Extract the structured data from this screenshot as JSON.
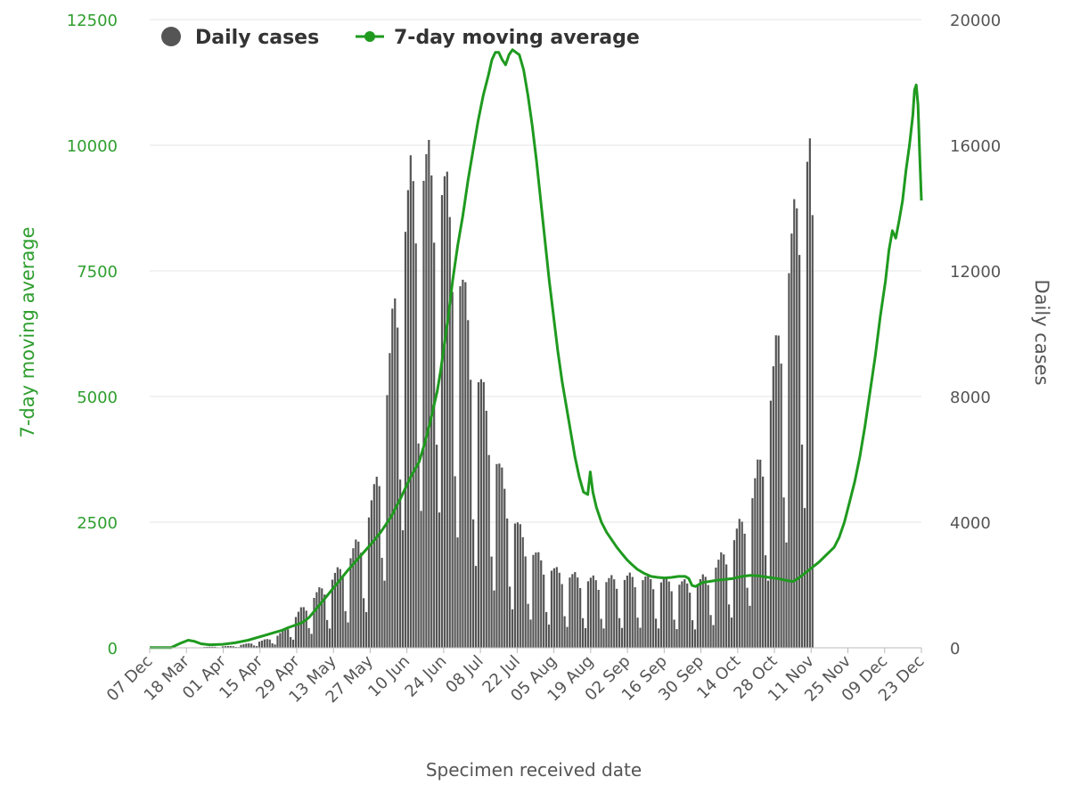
{
  "chart_data": {
    "type": "bar+line",
    "xlabel": "Specimen received date",
    "ylabel_left": "7-day moving average",
    "ylabel_right": "Daily cases",
    "ylim_left": [
      0,
      12500
    ],
    "ylim_right": [
      0,
      20000
    ],
    "yticks_left": [
      "0",
      "2500",
      "5000",
      "7500",
      "10000",
      "12500"
    ],
    "yticks_right": [
      "0",
      "4000",
      "8000",
      "12000",
      "16000",
      "20000"
    ],
    "xticks": [
      "07 Dec",
      "18 Mar",
      "01 Apr",
      "15 Apr",
      "29 Apr",
      "13 May",
      "27 May",
      "10 Jun",
      "24 Jun",
      "08 Jul",
      "22 Jul",
      "05 Aug",
      "19 Aug",
      "02 Sep",
      "16 Sep",
      "30 Sep",
      "14 Oct",
      "28 Oct",
      "11 Nov",
      "25 Nov",
      "09 Dec",
      "23 Dec"
    ],
    "grid": true,
    "legend_position": "top-left",
    "colors": {
      "bars": "#555555",
      "line": "#1f9a1f",
      "left_axis": "#2e9e2e",
      "grid": "#e6e6e6"
    },
    "series": [
      {
        "name": "Daily cases",
        "axis": "right",
        "kind": "bar",
        "anchor_points": [
          [
            0,
            0
          ],
          [
            40,
            0
          ],
          [
            60,
            20
          ],
          [
            100,
            60
          ],
          [
            130,
            200
          ],
          [
            150,
            380
          ],
          [
            160,
            600
          ],
          [
            175,
            1100
          ],
          [
            190,
            1500
          ],
          [
            205,
            1900
          ],
          [
            220,
            2300
          ],
          [
            235,
            2800
          ],
          [
            250,
            3500
          ],
          [
            262,
            4600
          ],
          [
            270,
            6000
          ],
          [
            280,
            8500
          ],
          [
            288,
            11000
          ],
          [
            296,
            12500
          ],
          [
            305,
            14000
          ],
          [
            315,
            14500
          ],
          [
            322,
            14600
          ],
          [
            330,
            14300
          ],
          [
            338,
            14400
          ],
          [
            346,
            13800
          ],
          [
            355,
            12400
          ],
          [
            365,
            11000
          ],
          [
            375,
            9500
          ],
          [
            385,
            8200
          ],
          [
            395,
            7000
          ],
          [
            405,
            5800
          ],
          [
            415,
            4800
          ],
          [
            425,
            4000
          ],
          [
            435,
            3400
          ],
          [
            445,
            3000
          ],
          [
            455,
            2700
          ],
          [
            465,
            2500
          ],
          [
            475,
            2300
          ],
          [
            490,
            2200
          ],
          [
            505,
            2100
          ],
          [
            520,
            2050
          ],
          [
            535,
            2050
          ],
          [
            550,
            2100
          ],
          [
            565,
            2150
          ],
          [
            580,
            2100
          ],
          [
            595,
            2050
          ],
          [
            610,
            2000
          ],
          [
            625,
            1950
          ],
          [
            640,
            1950
          ],
          [
            652,
            2200
          ],
          [
            665,
            2600
          ],
          [
            678,
            3100
          ],
          [
            692,
            3800
          ],
          [
            705,
            4700
          ],
          [
            718,
            6200
          ],
          [
            730,
            8500
          ],
          [
            742,
            10800
          ],
          [
            752,
            12500
          ],
          [
            760,
            14000
          ],
          [
            768,
            15200
          ],
          [
            772,
            15000
          ],
          [
            776,
            11000
          ]
        ]
      },
      {
        "name": "7-day moving average",
        "axis": "left",
        "kind": "line",
        "points": [
          [
            0,
            5
          ],
          [
            25,
            5
          ],
          [
            36,
            90
          ],
          [
            45,
            150
          ],
          [
            52,
            130
          ],
          [
            60,
            80
          ],
          [
            70,
            60
          ],
          [
            85,
            70
          ],
          [
            100,
            100
          ],
          [
            115,
            150
          ],
          [
            125,
            200
          ],
          [
            135,
            250
          ],
          [
            145,
            300
          ],
          [
            155,
            350
          ],
          [
            162,
            400
          ],
          [
            170,
            450
          ],
          [
            178,
            500
          ],
          [
            186,
            600
          ],
          [
            196,
            800
          ],
          [
            208,
            1050
          ],
          [
            220,
            1300
          ],
          [
            232,
            1550
          ],
          [
            245,
            1800
          ],
          [
            258,
            2050
          ],
          [
            270,
            2300
          ],
          [
            282,
            2600
          ],
          [
            294,
            3000
          ],
          [
            305,
            3400
          ],
          [
            315,
            3700
          ],
          [
            322,
            4100
          ],
          [
            328,
            4500
          ],
          [
            332,
            4800
          ],
          [
            336,
            5100
          ],
          [
            340,
            5500
          ],
          [
            344,
            6000
          ],
          [
            349,
            6600
          ],
          [
            354,
            7300
          ],
          [
            360,
            8000
          ],
          [
            366,
            8600
          ],
          [
            372,
            9300
          ],
          [
            378,
            9900
          ],
          [
            384,
            10500
          ],
          [
            390,
            11000
          ],
          [
            396,
            11400
          ],
          [
            400,
            11700
          ],
          [
            404,
            11850
          ],
          [
            408,
            11850
          ],
          [
            412,
            11700
          ],
          [
            416,
            11600
          ],
          [
            420,
            11800
          ],
          [
            424,
            11900
          ],
          [
            428,
            11850
          ],
          [
            432,
            11800
          ],
          [
            437,
            11500
          ],
          [
            442,
            11000
          ],
          [
            447,
            10400
          ],
          [
            452,
            9700
          ],
          [
            457,
            8900
          ],
          [
            462,
            8100
          ],
          [
            467,
            7300
          ],
          [
            472,
            6600
          ],
          [
            477,
            5900
          ],
          [
            482,
            5300
          ],
          [
            487,
            4800
          ],
          [
            492,
            4300
          ],
          [
            497,
            3800
          ],
          [
            502,
            3400
          ],
          [
            507,
            3100
          ],
          [
            512,
            3050
          ],
          [
            515,
            3500
          ],
          [
            518,
            3100
          ],
          [
            522,
            2800
          ],
          [
            528,
            2500
          ],
          [
            534,
            2300
          ],
          [
            540,
            2150
          ],
          [
            546,
            2000
          ],
          [
            552,
            1870
          ],
          [
            558,
            1750
          ],
          [
            564,
            1650
          ],
          [
            570,
            1560
          ],
          [
            578,
            1480
          ],
          [
            586,
            1420
          ],
          [
            594,
            1400
          ],
          [
            602,
            1390
          ],
          [
            610,
            1400
          ],
          [
            618,
            1420
          ],
          [
            626,
            1420
          ],
          [
            630,
            1380
          ],
          [
            634,
            1240
          ],
          [
            638,
            1220
          ],
          [
            642,
            1260
          ],
          [
            646,
            1300
          ],
          [
            654,
            1320
          ],
          [
            662,
            1340
          ],
          [
            672,
            1360
          ],
          [
            682,
            1380
          ],
          [
            692,
            1420
          ],
          [
            702,
            1440
          ],
          [
            712,
            1430
          ],
          [
            720,
            1410
          ],
          [
            728,
            1390
          ],
          [
            736,
            1370
          ],
          [
            744,
            1340
          ],
          [
            752,
            1320
          ],
          [
            758,
            1380
          ],
          [
            764,
            1460
          ],
          [
            770,
            1540
          ],
          [
            776,
            1620
          ],
          [
            782,
            1700
          ],
          [
            788,
            1800
          ],
          [
            794,
            1900
          ],
          [
            800,
            2000
          ],
          [
            806,
            2200
          ],
          [
            812,
            2500
          ],
          [
            818,
            2900
          ],
          [
            824,
            3300
          ],
          [
            830,
            3800
          ],
          [
            836,
            4400
          ],
          [
            842,
            5100
          ],
          [
            848,
            5800
          ],
          [
            854,
            6600
          ],
          [
            860,
            7300
          ],
          [
            864,
            7900
          ],
          [
            868,
            8300
          ],
          [
            872,
            8150
          ],
          [
            876,
            8500
          ],
          [
            880,
            8900
          ],
          [
            884,
            9500
          ],
          [
            888,
            10000
          ],
          [
            892,
            10600
          ],
          [
            894,
            11100
          ],
          [
            896,
            11200
          ],
          [
            898,
            10800
          ],
          [
            900,
            9800
          ],
          [
            902,
            8900
          ]
        ]
      }
    ]
  },
  "legend": {
    "bars_label": "Daily cases",
    "line_label": "7-day moving average"
  }
}
